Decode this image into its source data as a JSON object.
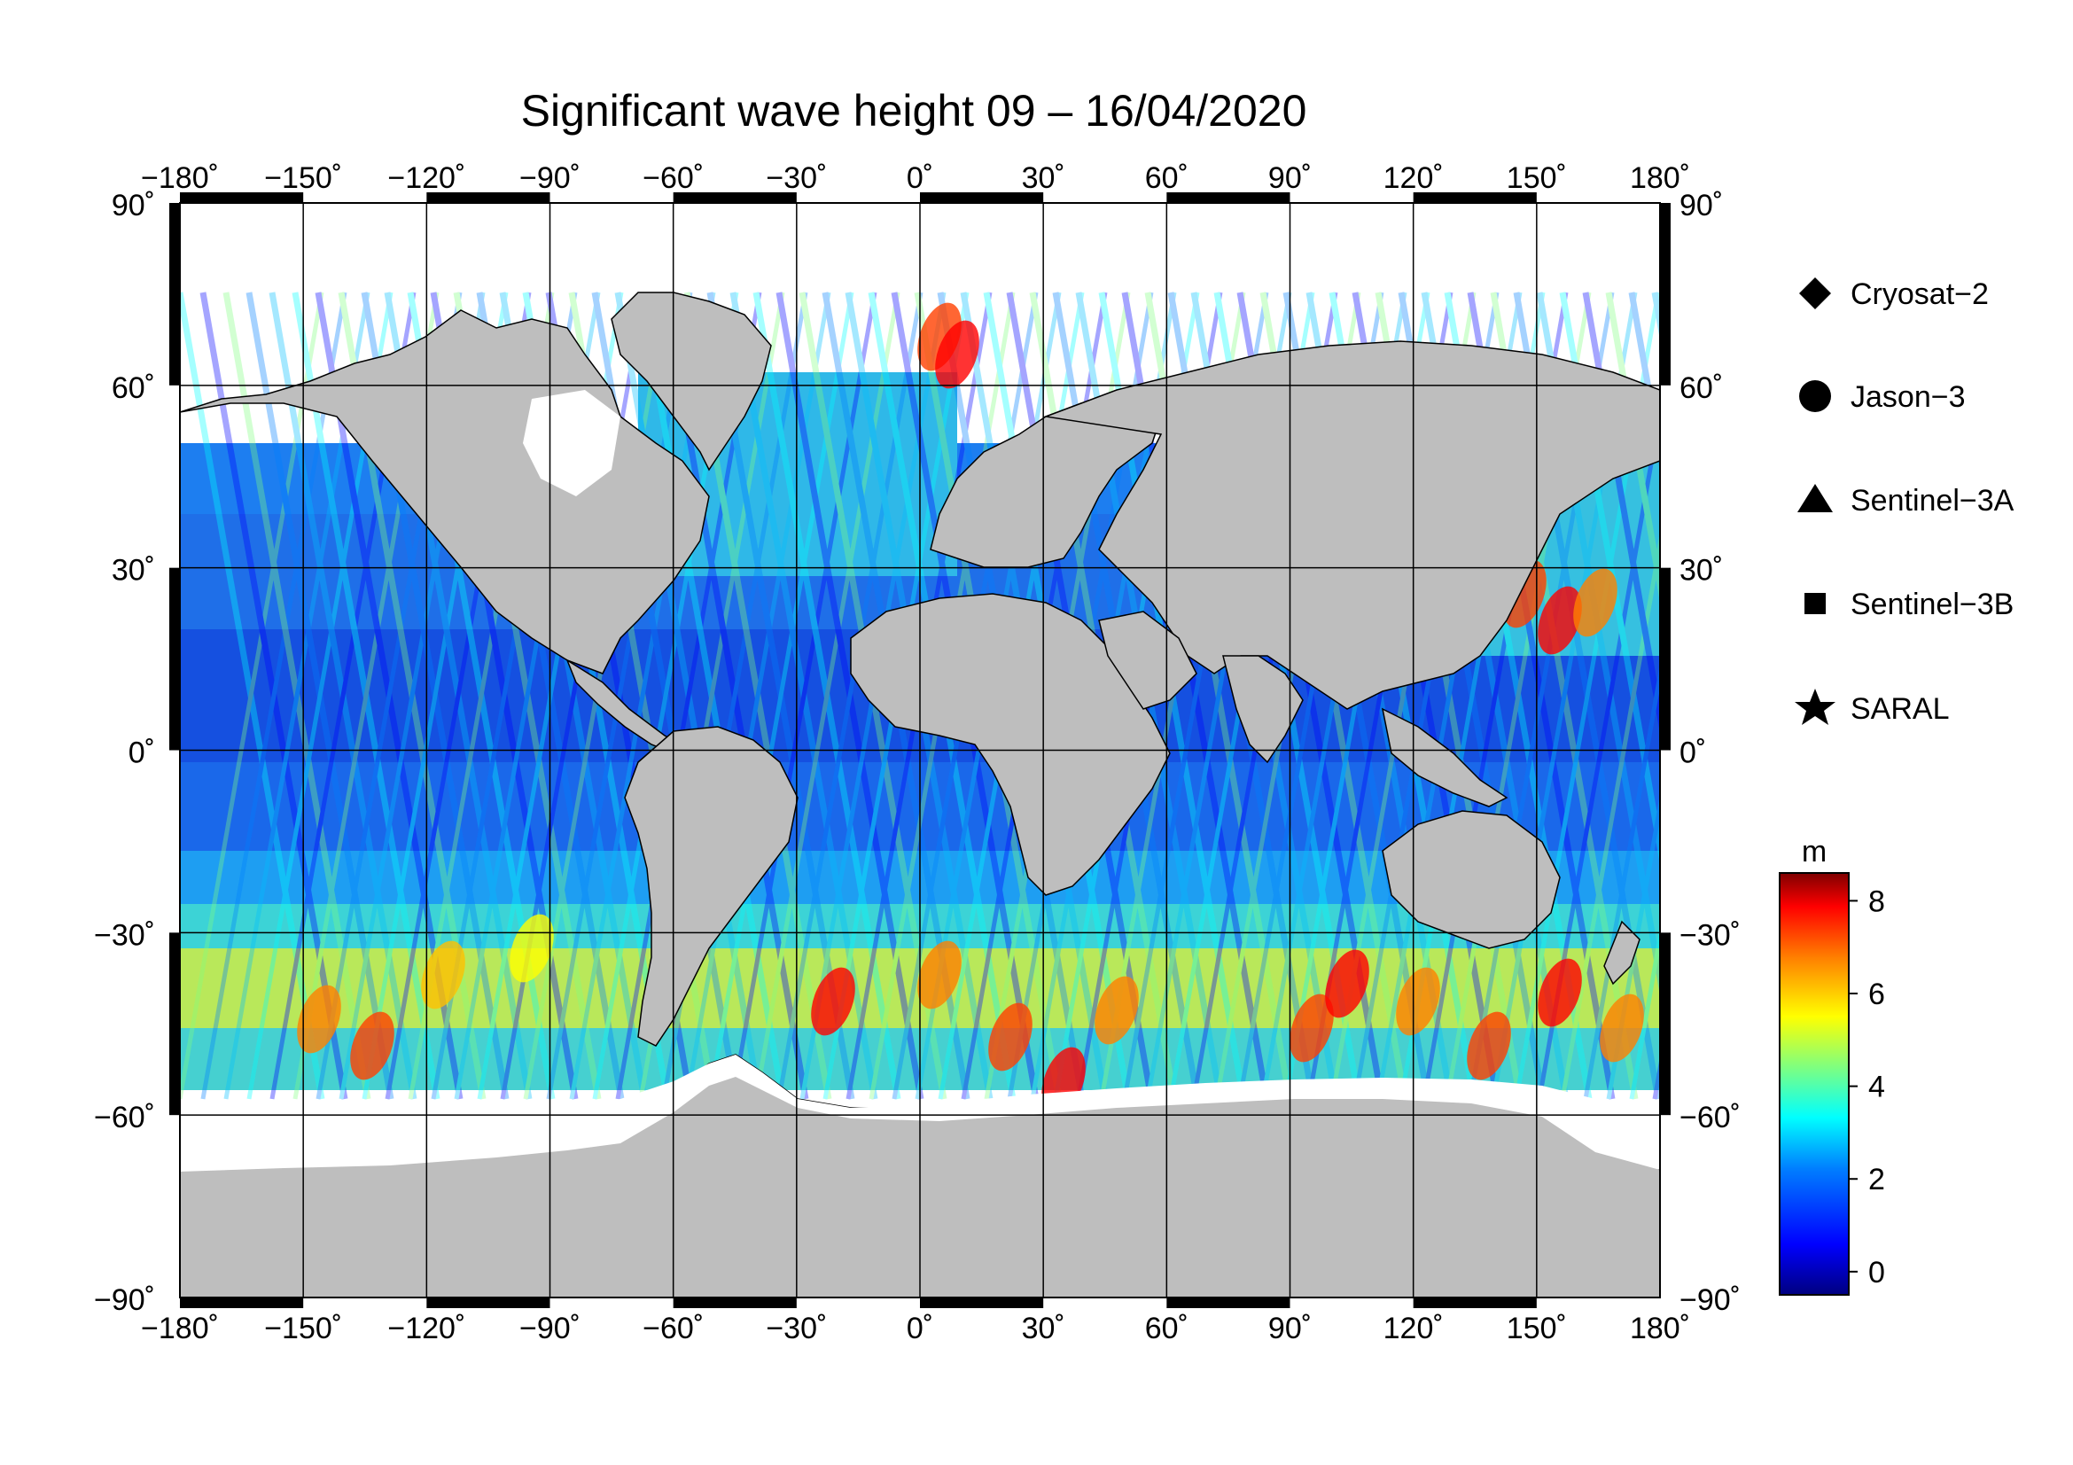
{
  "title": "Significant wave height 09 – 16/04/2020",
  "axes": {
    "lon_ticks": [
      "−180˚",
      "−150˚",
      "−120˚",
      "−90˚",
      "−60˚",
      "−30˚",
      "0˚",
      "30˚",
      "60˚",
      "90˚",
      "120˚",
      "150˚",
      "180˚"
    ],
    "lat_ticks": [
      "90˚",
      "60˚",
      "30˚",
      "0˚",
      "−30˚",
      "−60˚",
      "−90˚"
    ]
  },
  "legend": {
    "items": [
      {
        "label": "Cryosat−2",
        "symbol": "diamond"
      },
      {
        "label": "Jason−3",
        "symbol": "circle"
      },
      {
        "label": "Sentinel−3A",
        "symbol": "triangle"
      },
      {
        "label": "Sentinel−3B",
        "symbol": "square"
      },
      {
        "label": "SARAL",
        "symbol": "star"
      }
    ]
  },
  "colorbar": {
    "unit": "m",
    "ticks": [
      "8",
      "6",
      "4",
      "2",
      "0"
    ],
    "range": [
      -0.5,
      8.6
    ],
    "colors": [
      "#00007f",
      "#0000ff",
      "#007fff",
      "#00ffff",
      "#7fff7f",
      "#ffff00",
      "#ff7f00",
      "#ff0000",
      "#7f0000"
    ]
  },
  "colors": {
    "land": "#bebebe",
    "ice": "#ffffff",
    "frame": "#000000"
  }
}
